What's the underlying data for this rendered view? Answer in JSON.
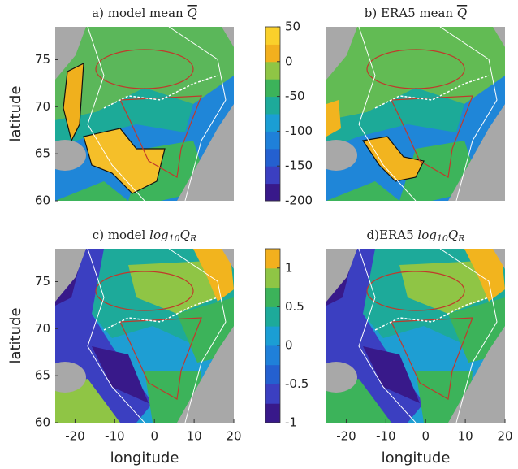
{
  "chart_data": [
    {
      "type": "map",
      "title": "a) model mean",
      "title_math": {
        "var": "Q",
        "overline": true
      },
      "ylabel": "latitude",
      "xlim": [
        -25,
        20
      ],
      "ylim": [
        60,
        78.5
      ],
      "yticks": [
        60,
        65,
        70,
        75
      ],
      "colorbar": {
        "lim": [
          -200,
          50
        ],
        "ticks": [
          -200,
          -150,
          -100,
          -50,
          0,
          50
        ],
        "colors": [
          "#38198a",
          "#3b3fc1",
          "#2460d0",
          "#1f80d9",
          "#1b9ed4",
          "#1daa9a",
          "#3cb35a",
          "#8fc545",
          "#f2b01e",
          "#fad02b"
        ]
      }
    },
    {
      "type": "map",
      "title": "b) ERA5 mean",
      "title_math": {
        "var": "Q",
        "overline": true
      },
      "xlim": [
        -25,
        20
      ],
      "ylim": [
        60,
        78.5
      ]
    },
    {
      "type": "map",
      "title": "c) model",
      "title_math": {
        "base": "log",
        "sub": "10",
        "var": "Q",
        "var_sub": "R"
      },
      "ylabel": "latitude",
      "xlabel": "longitude",
      "xlim": [
        -25,
        20
      ],
      "ylim": [
        60,
        78.5
      ],
      "xticks": [
        -20,
        -10,
        0,
        10,
        20
      ],
      "yticks": [
        60,
        65,
        70,
        75
      ],
      "colorbar": {
        "lim": [
          -1,
          1.25
        ],
        "ticks": [
          -1,
          -0.5,
          0,
          0.5,
          1
        ],
        "colors": [
          "#38198a",
          "#3b3fc1",
          "#2460d0",
          "#1f80d9",
          "#1b9ed4",
          "#1daa9a",
          "#3cb35a",
          "#8fc545",
          "#f2b01e"
        ]
      }
    },
    {
      "type": "map",
      "title": "d)ERA5",
      "title_math": {
        "base": "log",
        "sub": "10",
        "var": "Q",
        "var_sub": "R"
      },
      "xlabel": "longitude",
      "xlim": [
        -25,
        20
      ],
      "ylim": [
        60,
        78.5
      ],
      "xticks": [
        -20,
        -10,
        0,
        10,
        20
      ]
    }
  ]
}
